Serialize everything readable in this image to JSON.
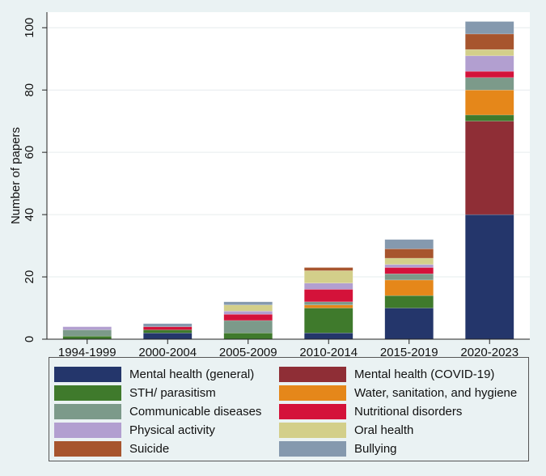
{
  "chart_data": {
    "type": "stacked-bar",
    "title": "",
    "xlabel": "",
    "ylabel": "Number of papers",
    "ylim": [
      0,
      105
    ],
    "yticks": [
      0,
      20,
      40,
      60,
      80,
      100
    ],
    "grid": true,
    "legend_position": "bottom",
    "categories": [
      "1994-1999",
      "2000-2004",
      "2005-2009",
      "2010-2014",
      "2015-2019",
      "2020-2023"
    ],
    "series": [
      {
        "name": "Mental health (general)",
        "color": "#24366b",
        "values": [
          0,
          2,
          0,
          2,
          10,
          40
        ]
      },
      {
        "name": "Mental health (COVID-19)",
        "color": "#8f2e36",
        "values": [
          0,
          0,
          0,
          0,
          0,
          30
        ]
      },
      {
        "name": "STH/ parasitism",
        "color": "#3f7a2c",
        "values": [
          1,
          1,
          2,
          8,
          4,
          2
        ]
      },
      {
        "name": "Water, sanitation, and hygiene",
        "color": "#e5871a",
        "values": [
          0,
          0,
          0,
          1,
          5,
          8
        ]
      },
      {
        "name": "Communicable diseases",
        "color": "#7c9a8a",
        "values": [
          2,
          0,
          4,
          1,
          2,
          4
        ]
      },
      {
        "name": "Nutritional disorders",
        "color": "#d4123a",
        "values": [
          0,
          1,
          2,
          4,
          2,
          2
        ]
      },
      {
        "name": "Physical activity",
        "color": "#b29fd0",
        "values": [
          1,
          0,
          1,
          2,
          1,
          5
        ]
      },
      {
        "name": "Oral health",
        "color": "#d3cf8a",
        "values": [
          0,
          0,
          2,
          4,
          2,
          2
        ]
      },
      {
        "name": "Suicide",
        "color": "#a7552e",
        "values": [
          0,
          0,
          0,
          1,
          3,
          5
        ]
      },
      {
        "name": "Bullying",
        "color": "#8599ae",
        "values": [
          0,
          1,
          1,
          0,
          3,
          4
        ]
      }
    ]
  }
}
